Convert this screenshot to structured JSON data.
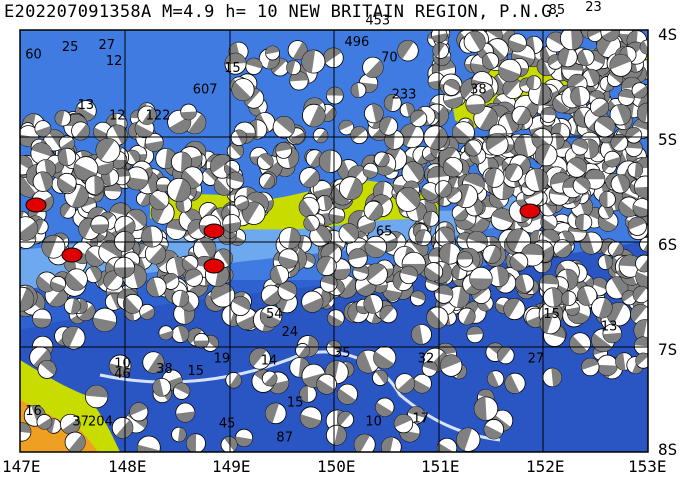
{
  "title": "E202207091358A M=4.9 h= 10 NEW BRITAIN REGION, P.N.G.",
  "lon_ticks": [
    "147E",
    "148E",
    "149E",
    "150E",
    "151E",
    "152E",
    "153E"
  ],
  "lat_ticks": [
    "4S",
    "5S",
    "6S",
    "7S",
    "8S"
  ],
  "colors": {
    "ocean_deep": "#2a5fd6",
    "ocean_mid": "#4a86e8",
    "ocean_shallow": "#7ab8f0",
    "land_low": "#d6e600",
    "land_high": "#f0a020",
    "beachball_fill": "#808080",
    "beachball_highlight": "#e00000",
    "grid": "#000000",
    "trench_line": "#d8e4ff"
  },
  "depth_labels": [
    {
      "text": "25",
      "lon": 147.4,
      "lat": 4.2
    },
    {
      "text": "27",
      "lon": 147.75,
      "lat": 4.18
    },
    {
      "text": "12",
      "lon": 147.82,
      "lat": 4.33
    },
    {
      "text": "60",
      "lon": 147.05,
      "lat": 4.27
    },
    {
      "text": "13",
      "lon": 147.55,
      "lat": 4.75
    },
    {
      "text": "12",
      "lon": 147.85,
      "lat": 4.85
    },
    {
      "text": "122",
      "lon": 148.2,
      "lat": 4.85
    },
    {
      "text": "15",
      "lon": 148.95,
      "lat": 4.4
    },
    {
      "text": "607",
      "lon": 148.65,
      "lat": 4.6
    },
    {
      "text": "453",
      "lon": 150.3,
      "lat": 3.95
    },
    {
      "text": "496",
      "lon": 150.1,
      "lat": 4.15
    },
    {
      "text": "70",
      "lon": 150.45,
      "lat": 4.3
    },
    {
      "text": "233",
      "lon": 150.55,
      "lat": 4.65
    },
    {
      "text": "38",
      "lon": 151.3,
      "lat": 4.6
    },
    {
      "text": "23",
      "lon": 152.4,
      "lat": 3.82
    },
    {
      "text": "85",
      "lon": 152.05,
      "lat": 3.85
    },
    {
      "text": "10",
      "lon": 147.9,
      "lat": 7.2
    },
    {
      "text": "38",
      "lon": 148.3,
      "lat": 7.25
    },
    {
      "text": "46",
      "lon": 147.9,
      "lat": 7.3
    },
    {
      "text": "15",
      "lon": 148.6,
      "lat": 7.27
    },
    {
      "text": "19",
      "lon": 148.85,
      "lat": 7.15
    },
    {
      "text": "14",
      "lon": 149.3,
      "lat": 7.17
    },
    {
      "text": "35",
      "lon": 150.0,
      "lat": 7.1
    },
    {
      "text": "32",
      "lon": 150.8,
      "lat": 7.15
    },
    {
      "text": "27",
      "lon": 151.85,
      "lat": 7.15
    },
    {
      "text": "15",
      "lon": 149.55,
      "lat": 7.57
    },
    {
      "text": "45",
      "lon": 148.9,
      "lat": 7.77
    },
    {
      "text": "87",
      "lon": 149.45,
      "lat": 7.9
    },
    {
      "text": "10",
      "lon": 150.3,
      "lat": 7.75
    },
    {
      "text": "17",
      "lon": 150.75,
      "lat": 7.72
    },
    {
      "text": "13",
      "lon": 152.55,
      "lat": 6.85
    },
    {
      "text": "15",
      "lon": 152.0,
      "lat": 6.73
    },
    {
      "text": "16",
      "lon": 147.05,
      "lat": 7.65
    },
    {
      "text": "37",
      "lon": 147.5,
      "lat": 7.75
    },
    {
      "text": "204",
      "lon": 147.65,
      "lat": 7.75
    },
    {
      "text": "54",
      "lon": 149.35,
      "lat": 6.73
    },
    {
      "text": "24",
      "lon": 149.5,
      "lat": 6.9
    },
    {
      "text": "65",
      "lon": 150.4,
      "lat": 5.95
    }
  ]
}
